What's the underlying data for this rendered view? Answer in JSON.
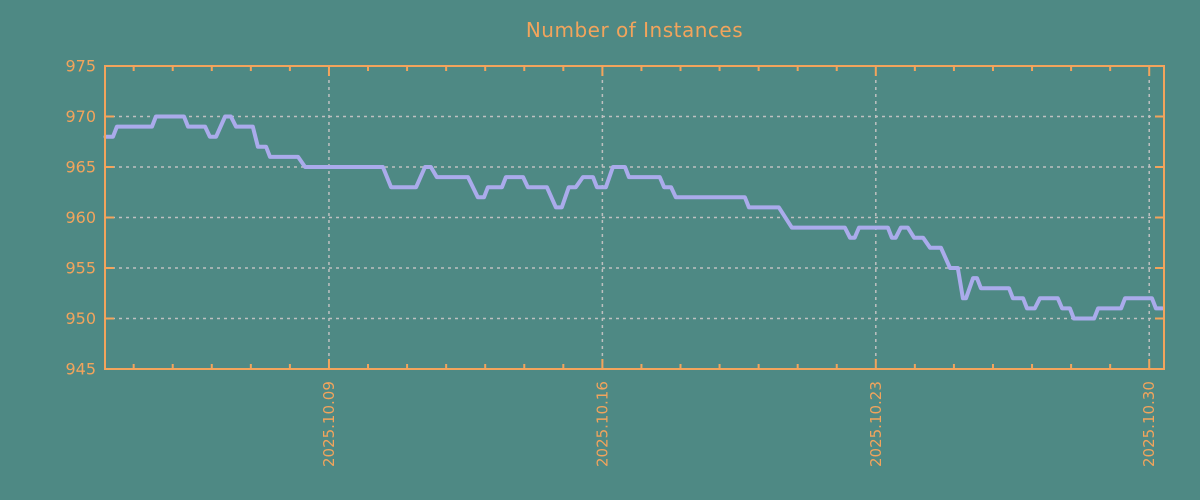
{
  "title": "Number of Instances",
  "colors": {
    "background": "#4E8984",
    "axis_and_text": "#F2A45C",
    "series_line": "#AAABEB",
    "gridline": "#BEC0C0"
  },
  "chart_data": {
    "type": "line",
    "title": "Number of Instances",
    "legend": "none",
    "grid": "dashed gray lines at major ticks, horizontal every 5 units, vertical weekly",
    "y_axis": {
      "range": [
        945,
        975
      ],
      "ticks": [
        945,
        950,
        955,
        960,
        965,
        970,
        975
      ]
    },
    "x_axis": {
      "unit": "days (x = day offset, minor tick every 1 day)",
      "minor_tick_days": [
        1,
        2,
        3,
        4,
        5,
        7,
        8,
        9,
        10,
        11,
        12,
        14,
        15,
        16,
        17,
        18,
        19,
        21,
        22,
        23,
        24,
        25,
        26
      ],
      "major_tick_days": [
        6,
        13,
        20,
        27
      ],
      "tick_labels": [
        "2025.10.09",
        "2025.10.16",
        "2025.10.23",
        "2025.10.30"
      ],
      "label_rotation_deg": -90
    },
    "series": [
      {
        "name": "instances",
        "points": [
          [
            0.28,
            968
          ],
          [
            0.47,
            968
          ],
          [
            0.57,
            969
          ],
          [
            1.47,
            969
          ],
          [
            1.57,
            970
          ],
          [
            2.29,
            970
          ],
          [
            2.39,
            969
          ],
          [
            2.83,
            969
          ],
          [
            2.95,
            968
          ],
          [
            3.11,
            968
          ],
          [
            3.34,
            970
          ],
          [
            3.49,
            970
          ],
          [
            3.62,
            969
          ],
          [
            4.05,
            969
          ],
          [
            4.18,
            967
          ],
          [
            4.39,
            967
          ],
          [
            4.49,
            966
          ],
          [
            5.21,
            966
          ],
          [
            5.39,
            965
          ],
          [
            7.38,
            965
          ],
          [
            7.59,
            963
          ],
          [
            8.23,
            963
          ],
          [
            8.46,
            965
          ],
          [
            8.61,
            965
          ],
          [
            8.76,
            964
          ],
          [
            9.56,
            964
          ],
          [
            9.81,
            962
          ],
          [
            9.97,
            962
          ],
          [
            10.07,
            963
          ],
          [
            10.43,
            963
          ],
          [
            10.53,
            964
          ],
          [
            10.97,
            964
          ],
          [
            11.09,
            963
          ],
          [
            11.58,
            963
          ],
          [
            11.81,
            961
          ],
          [
            11.96,
            961
          ],
          [
            12.14,
            963
          ],
          [
            12.32,
            963
          ],
          [
            12.5,
            964
          ],
          [
            12.76,
            964
          ],
          [
            12.86,
            963
          ],
          [
            13.09,
            963
          ],
          [
            13.27,
            965
          ],
          [
            13.58,
            965
          ],
          [
            13.68,
            964
          ],
          [
            14.47,
            964
          ],
          [
            14.58,
            963
          ],
          [
            14.76,
            963
          ],
          [
            14.88,
            962
          ],
          [
            16.65,
            962
          ],
          [
            16.75,
            961
          ],
          [
            17.52,
            961
          ],
          [
            17.85,
            959
          ],
          [
            19.21,
            959
          ],
          [
            19.34,
            958
          ],
          [
            19.46,
            958
          ],
          [
            19.57,
            959
          ],
          [
            20.31,
            959
          ],
          [
            20.41,
            958
          ],
          [
            20.51,
            958
          ],
          [
            20.64,
            959
          ],
          [
            20.82,
            959
          ],
          [
            20.98,
            958
          ],
          [
            21.21,
            958
          ],
          [
            21.39,
            957
          ],
          [
            21.67,
            957
          ],
          [
            21.9,
            955
          ],
          [
            22.1,
            955
          ],
          [
            22.23,
            952
          ],
          [
            22.31,
            952
          ],
          [
            22.49,
            954
          ],
          [
            22.59,
            954
          ],
          [
            22.69,
            953
          ],
          [
            23.41,
            953
          ],
          [
            23.51,
            952
          ],
          [
            23.77,
            952
          ],
          [
            23.87,
            951
          ],
          [
            24.07,
            951
          ],
          [
            24.2,
            952
          ],
          [
            24.66,
            952
          ],
          [
            24.77,
            951
          ],
          [
            24.97,
            951
          ],
          [
            25.07,
            950
          ],
          [
            25.59,
            950
          ],
          [
            25.69,
            951
          ],
          [
            26.28,
            951
          ],
          [
            26.38,
            952
          ],
          [
            27.07,
            952
          ],
          [
            27.17,
            951
          ],
          [
            27.33,
            951
          ]
        ]
      }
    ]
  }
}
